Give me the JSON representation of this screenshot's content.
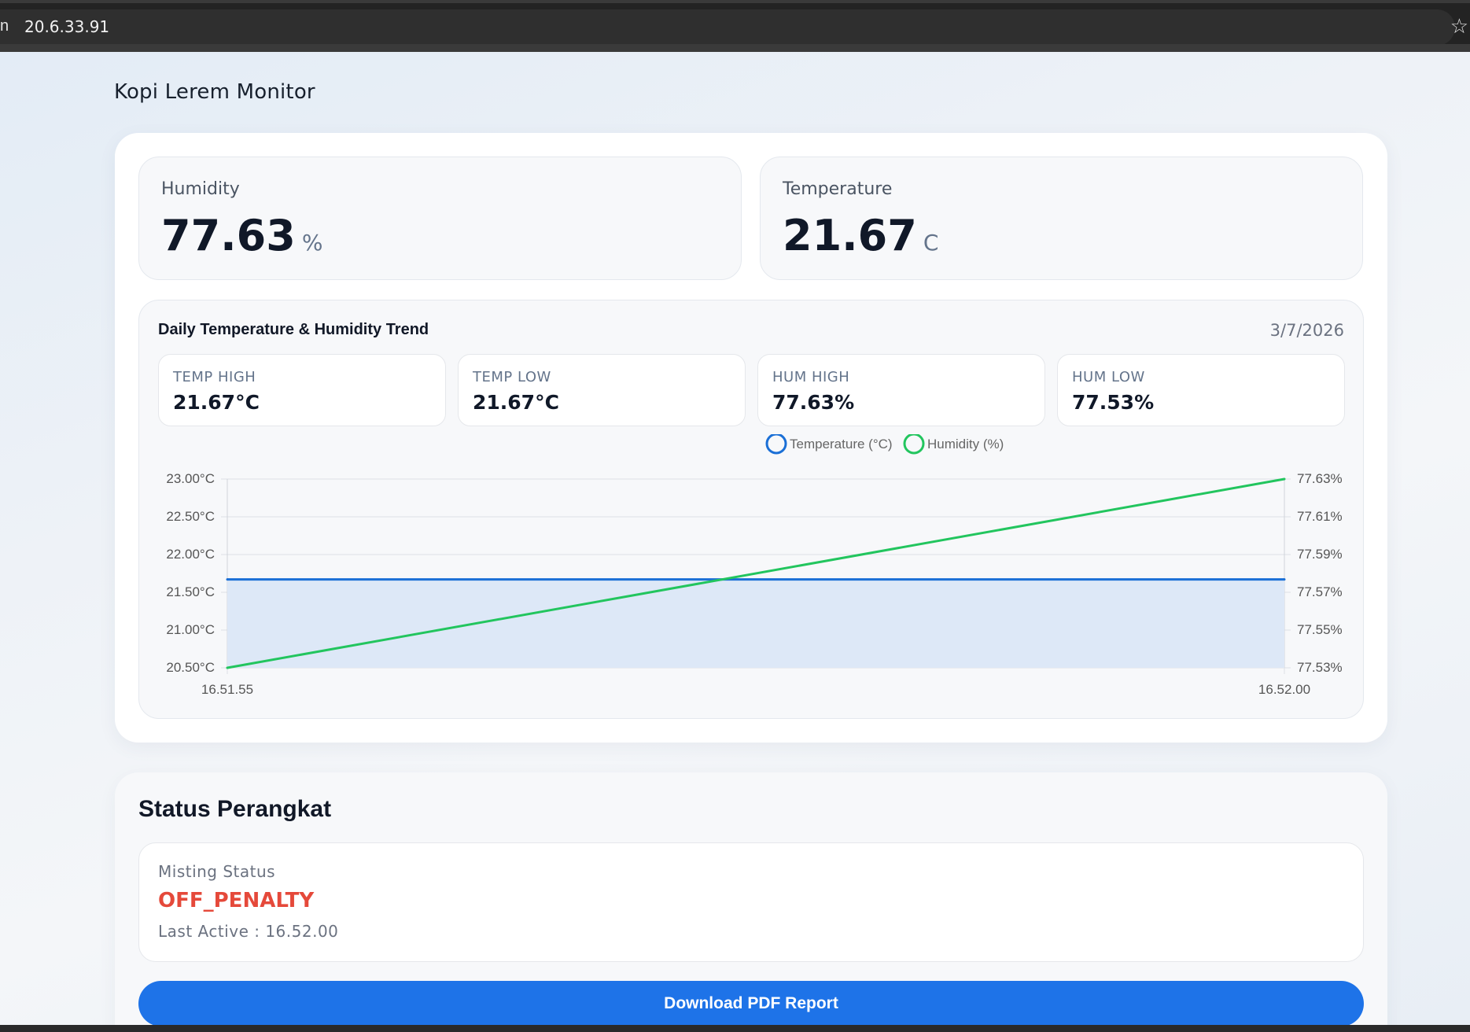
{
  "browser": {
    "left_fragment": "n",
    "url": "20.6.33.91"
  },
  "app": {
    "title": "Kopi Lerem Monitor"
  },
  "humidity": {
    "label": "Humidity",
    "value": "77.63",
    "unit": "%"
  },
  "temperature": {
    "label": "Temperature",
    "value": "21.67",
    "unit": "C"
  },
  "trend": {
    "title": "Daily Temperature & Humidity Trend",
    "date": "3/7/2026",
    "summary": [
      {
        "label": "TEMP HIGH",
        "value": "21.67°C"
      },
      {
        "label": "TEMP LOW",
        "value": "21.67°C"
      },
      {
        "label": "HUM HIGH",
        "value": "77.63%"
      },
      {
        "label": "HUM LOW",
        "value": "77.53%"
      }
    ]
  },
  "chart_data": {
    "type": "line",
    "x": [
      "16.51.55",
      "16.52.00"
    ],
    "series": [
      {
        "name": "Temperature (°C)",
        "axis": "left",
        "values": [
          21.67,
          21.67
        ],
        "color": "#1a6fd6",
        "fill": "#dde8f7"
      },
      {
        "name": "Humidity (%)",
        "axis": "right",
        "values": [
          77.53,
          77.63
        ],
        "color": "#22c55e"
      }
    ],
    "y_left": {
      "ylim": [
        20.5,
        23.0
      ],
      "ticks": [
        23.0,
        22.5,
        22.0,
        21.5,
        21.0,
        20.5
      ],
      "tick_labels": [
        "23.00°C",
        "22.50°C",
        "22.00°C",
        "21.50°C",
        "21.00°C",
        "20.50°C"
      ]
    },
    "y_right": {
      "ylim": [
        77.53,
        77.63
      ],
      "ticks": [
        77.63,
        77.61,
        77.59,
        77.57,
        77.55,
        77.53
      ],
      "tick_labels": [
        "77.63%",
        "77.61%",
        "77.59%",
        "77.57%",
        "77.55%",
        "77.53%"
      ]
    },
    "grid": true,
    "legend": "top-center"
  },
  "status": {
    "title": "Status Perangkat",
    "misting_label": "Misting Status",
    "misting_value": "OFF_PENALTY",
    "last_active": "Last Active : 16.52.00",
    "status_color": "#e5493a"
  },
  "actions": {
    "download_label": "Download PDF Report"
  },
  "colors": {
    "accent": "#1e73e8",
    "temperature": "#1a6fd6",
    "humidity": "#22c55e"
  }
}
